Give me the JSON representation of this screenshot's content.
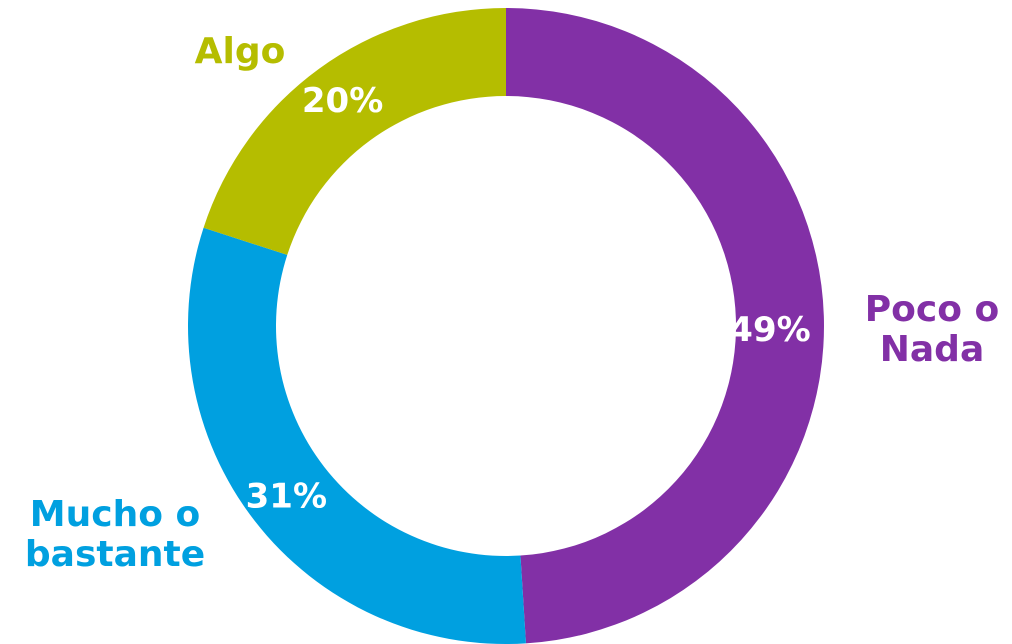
{
  "chart_data": {
    "type": "pie",
    "donut": true,
    "categories": [
      "Poco o Nada",
      "Mucho o bastante",
      "Algo"
    ],
    "values": [
      49,
      31,
      20
    ],
    "data_labels": [
      "49%",
      "31%",
      "20%"
    ],
    "category_labels": {
      "poco": [
        "Poco o",
        "Nada"
      ],
      "mucho": [
        "Mucho o",
        "bastante"
      ],
      "algo": [
        "Algo"
      ]
    },
    "colors": [
      "#8230a6",
      "#00a0e0",
      "#b5bd00"
    ],
    "title": "",
    "legend": "none"
  }
}
